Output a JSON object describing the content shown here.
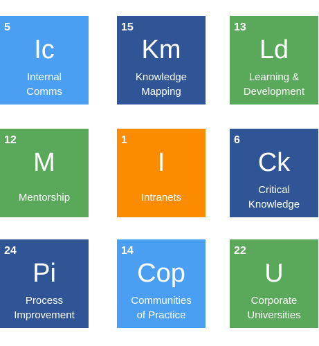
{
  "tiles": [
    {
      "number": "5",
      "symbol": "Ic",
      "name": "Internal\nComms",
      "color": "#4b9ff2"
    },
    {
      "number": "15",
      "symbol": "Km",
      "name": "Knowledge\nMapping",
      "color": "#2f5597"
    },
    {
      "number": "13",
      "symbol": "Ld",
      "name": "Learning &\nDevelopment",
      "color": "#5aa85a"
    },
    {
      "number": "12",
      "symbol": "M",
      "name": "Mentorship",
      "color": "#5aa85a"
    },
    {
      "number": "1",
      "symbol": "I",
      "name": "Intranets",
      "color": "#fb8c00"
    },
    {
      "number": "6",
      "symbol": "Ck",
      "name": "Critical\nKnowledge",
      "color": "#2f5597"
    },
    {
      "number": "24",
      "symbol": "Pi",
      "name": "Process\nImprovement",
      "color": "#2f5597"
    },
    {
      "number": "14",
      "symbol": "Cop",
      "name": "Communities\nof Practice",
      "color": "#4b9ff2"
    },
    {
      "number": "22",
      "symbol": "U",
      "name": "Corporate\nUniversities",
      "color": "#5aa85a"
    }
  ]
}
